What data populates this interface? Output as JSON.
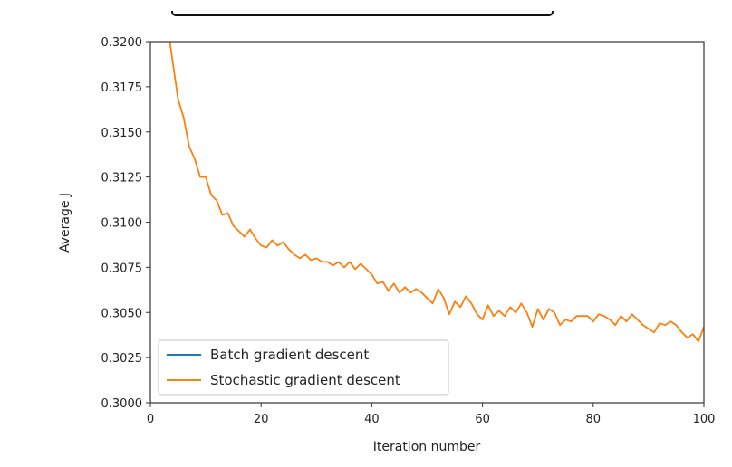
{
  "chart_data": {
    "type": "line",
    "title": "",
    "xlabel": "Iteration number",
    "ylabel": "Average J",
    "xlim": [
      0,
      100
    ],
    "ylim": [
      0.3,
      0.32
    ],
    "xticks": [
      "0",
      "20",
      "40",
      "60",
      "80",
      "100"
    ],
    "yticks": [
      "0.3000",
      "0.3025",
      "0.3050",
      "0.3075",
      "0.3100",
      "0.3125",
      "0.3150",
      "0.3175",
      "0.3200"
    ],
    "grid": false,
    "legend": "lower-left",
    "series": [
      {
        "name": "Batch gradient descent",
        "color": "#1f77b4",
        "x": [],
        "y": []
      },
      {
        "name": "Stochastic gradient descent",
        "color": "#ff7f0e",
        "x": [
          3.5,
          5,
          6,
          7,
          8,
          9,
          10,
          11,
          12,
          13,
          14,
          15,
          16,
          17,
          18,
          19,
          20,
          21,
          22,
          23,
          24,
          25,
          26,
          27,
          28,
          29,
          30,
          31,
          32,
          33,
          34,
          35,
          36,
          37,
          38,
          39,
          40,
          41,
          42,
          43,
          44,
          45,
          46,
          47,
          48,
          49,
          50,
          51,
          52,
          53,
          54,
          55,
          56,
          57,
          58,
          59,
          60,
          61,
          62,
          63,
          64,
          65,
          66,
          67,
          68,
          69,
          70,
          71,
          72,
          73,
          74,
          75,
          76,
          77,
          78,
          79,
          80,
          81,
          82,
          83,
          84,
          85,
          86,
          87,
          88,
          89,
          90,
          91,
          92,
          93,
          94,
          95,
          96,
          97,
          98,
          99,
          100
        ],
        "y": [
          0.32,
          0.3168,
          0.3158,
          0.3142,
          0.3135,
          0.3125,
          0.3125,
          0.3115,
          0.3112,
          0.3104,
          0.3105,
          0.3098,
          0.3095,
          0.3092,
          0.3096,
          0.3091,
          0.3087,
          0.3086,
          0.309,
          0.3087,
          0.3089,
          0.3085,
          0.3082,
          0.308,
          0.3082,
          0.3079,
          0.308,
          0.3078,
          0.3078,
          0.3076,
          0.3078,
          0.3075,
          0.3078,
          0.3074,
          0.3077,
          0.3074,
          0.3071,
          0.3066,
          0.3067,
          0.3062,
          0.3066,
          0.3061,
          0.3064,
          0.3061,
          0.3063,
          0.3061,
          0.3058,
          0.3055,
          0.3063,
          0.3058,
          0.3049,
          0.3056,
          0.3053,
          0.3059,
          0.3055,
          0.3049,
          0.3046,
          0.3054,
          0.3048,
          0.3051,
          0.3048,
          0.3053,
          0.305,
          0.3055,
          0.305,
          0.3042,
          0.3052,
          0.3046,
          0.3052,
          0.305,
          0.3043,
          0.3046,
          0.3045,
          0.3048,
          0.3048,
          0.3048,
          0.3045,
          0.3049,
          0.3048,
          0.3046,
          0.3043,
          0.3048,
          0.3045,
          0.3049,
          0.3046,
          0.3043,
          0.3041,
          0.3039,
          0.3044,
          0.3043,
          0.3045,
          0.3043,
          0.3039,
          0.3036,
          0.3038,
          0.3034,
          0.3042
        ]
      }
    ]
  }
}
